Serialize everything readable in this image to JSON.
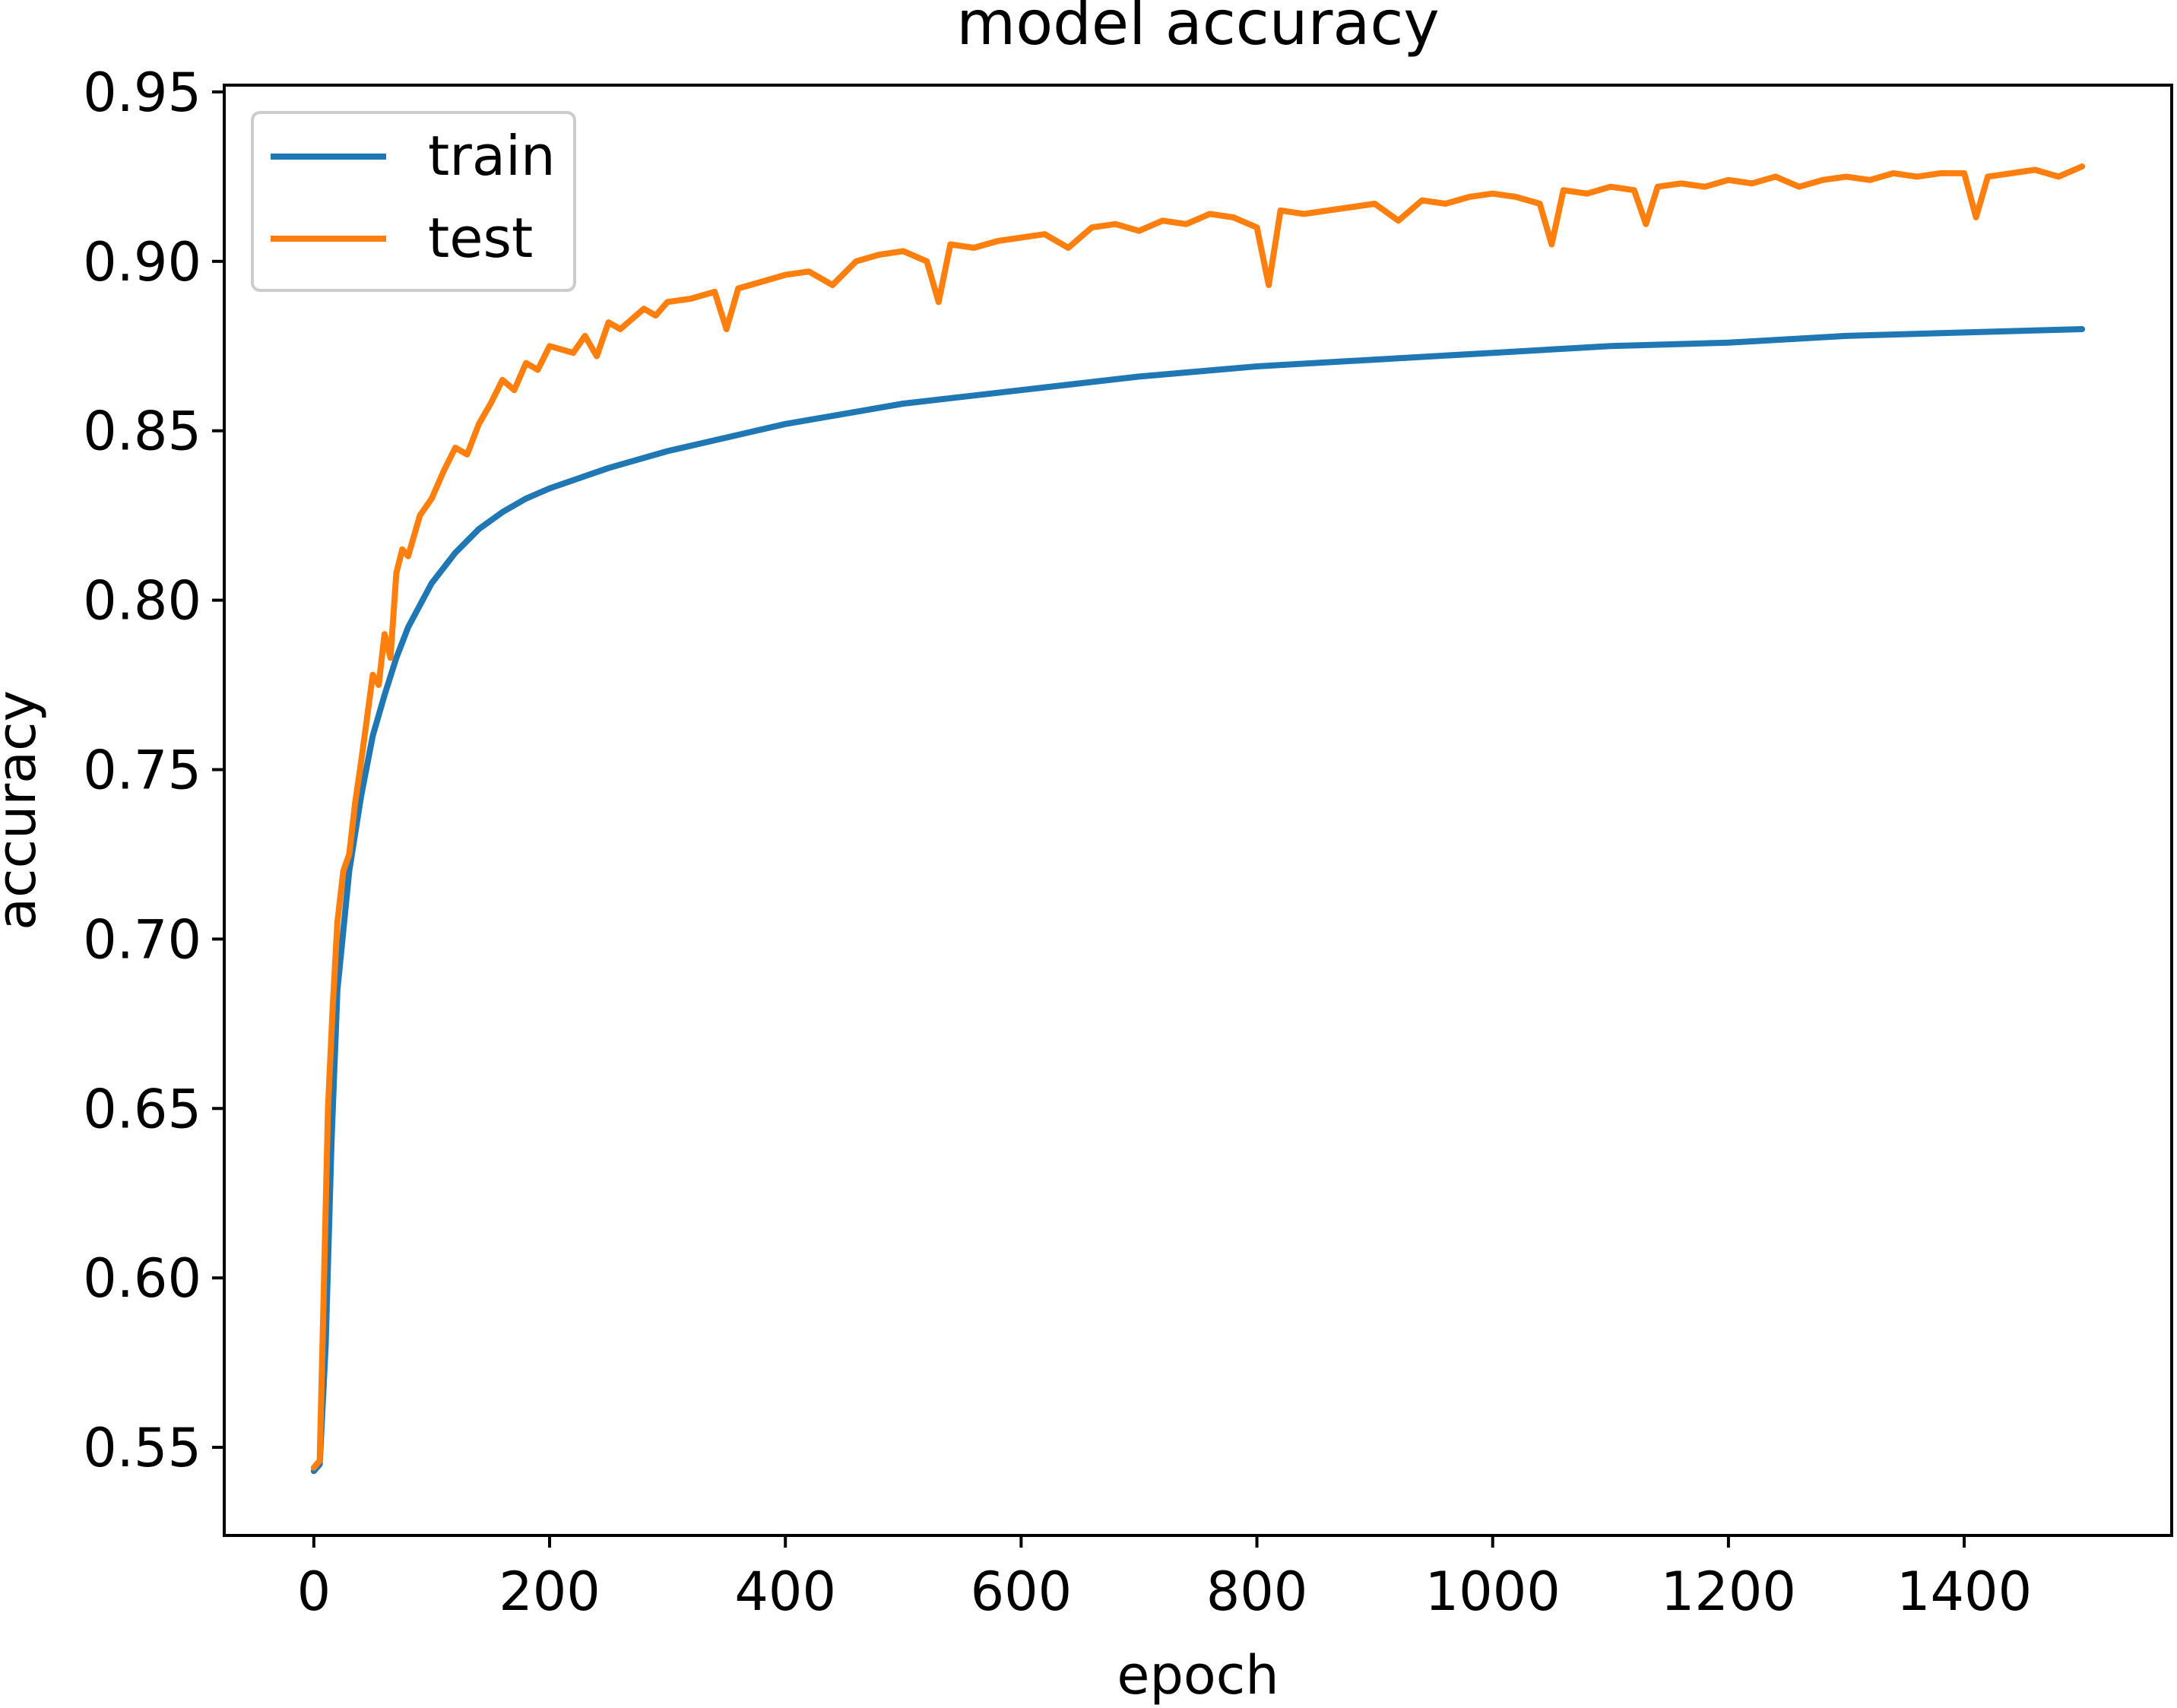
{
  "chart_data": {
    "type": "line",
    "title": "model accuracy",
    "xlabel": "epoch",
    "ylabel": "accuracy",
    "xlim": [
      -76,
      1576
    ],
    "ylim": [
      0.524,
      0.952
    ],
    "xticks": [
      0,
      200,
      400,
      600,
      800,
      1000,
      1200,
      1400
    ],
    "xtick_labels": [
      "0",
      "200",
      "400",
      "600",
      "800",
      "1000",
      "1200",
      "1400"
    ],
    "yticks": [
      0.55,
      0.6,
      0.65,
      0.7,
      0.75,
      0.8,
      0.85,
      0.9,
      0.95
    ],
    "ytick_labels": [
      "0.55",
      "0.60",
      "0.65",
      "0.70",
      "0.75",
      "0.80",
      "0.85",
      "0.90",
      "0.95"
    ],
    "grid": false,
    "legend_position": "top-left",
    "series": [
      {
        "name": "train",
        "color": "#1f77b4",
        "x": [
          0,
          5,
          10,
          15,
          20,
          30,
          40,
          50,
          60,
          70,
          80,
          100,
          120,
          140,
          160,
          180,
          200,
          250,
          300,
          350,
          400,
          500,
          600,
          700,
          800,
          900,
          1000,
          1100,
          1200,
          1300,
          1400,
          1500
        ],
        "y": [
          0.543,
          0.545,
          0.58,
          0.64,
          0.685,
          0.72,
          0.742,
          0.76,
          0.772,
          0.783,
          0.792,
          0.805,
          0.814,
          0.821,
          0.826,
          0.83,
          0.833,
          0.839,
          0.844,
          0.848,
          0.852,
          0.858,
          0.862,
          0.866,
          0.869,
          0.871,
          0.873,
          0.875,
          0.876,
          0.878,
          0.879,
          0.88
        ]
      },
      {
        "name": "test",
        "color": "#ff7f0e",
        "x": [
          0,
          5,
          8,
          12,
          16,
          20,
          25,
          30,
          35,
          40,
          45,
          50,
          55,
          60,
          65,
          70,
          75,
          80,
          90,
          100,
          110,
          120,
          130,
          140,
          150,
          160,
          170,
          180,
          190,
          200,
          210,
          220,
          230,
          240,
          250,
          260,
          270,
          280,
          290,
          300,
          320,
          340,
          350,
          360,
          380,
          400,
          420,
          440,
          460,
          480,
          500,
          520,
          530,
          540,
          560,
          580,
          600,
          620,
          640,
          660,
          680,
          700,
          720,
          740,
          760,
          780,
          800,
          810,
          820,
          840,
          860,
          880,
          900,
          920,
          940,
          960,
          980,
          1000,
          1020,
          1040,
          1050,
          1060,
          1080,
          1100,
          1120,
          1130,
          1140,
          1160,
          1180,
          1200,
          1220,
          1240,
          1260,
          1280,
          1300,
          1320,
          1340,
          1360,
          1380,
          1400,
          1410,
          1420,
          1440,
          1460,
          1480,
          1500
        ],
        "y": [
          0.544,
          0.546,
          0.59,
          0.65,
          0.68,
          0.705,
          0.72,
          0.725,
          0.74,
          0.752,
          0.765,
          0.778,
          0.775,
          0.79,
          0.783,
          0.808,
          0.815,
          0.813,
          0.825,
          0.83,
          0.838,
          0.845,
          0.843,
          0.852,
          0.858,
          0.865,
          0.862,
          0.87,
          0.868,
          0.875,
          0.874,
          0.873,
          0.878,
          0.872,
          0.882,
          0.88,
          0.883,
          0.886,
          0.884,
          0.888,
          0.889,
          0.891,
          0.88,
          0.892,
          0.894,
          0.896,
          0.897,
          0.893,
          0.9,
          0.902,
          0.903,
          0.9,
          0.888,
          0.905,
          0.904,
          0.906,
          0.907,
          0.908,
          0.904,
          0.91,
          0.911,
          0.909,
          0.912,
          0.911,
          0.914,
          0.913,
          0.91,
          0.893,
          0.915,
          0.914,
          0.915,
          0.916,
          0.917,
          0.912,
          0.918,
          0.917,
          0.919,
          0.92,
          0.919,
          0.917,
          0.905,
          0.921,
          0.92,
          0.922,
          0.921,
          0.911,
          0.922,
          0.923,
          0.922,
          0.924,
          0.923,
          0.925,
          0.922,
          0.924,
          0.925,
          0.924,
          0.926,
          0.925,
          0.926,
          0.926,
          0.913,
          0.925,
          0.926,
          0.927,
          0.925,
          0.928
        ]
      }
    ]
  }
}
